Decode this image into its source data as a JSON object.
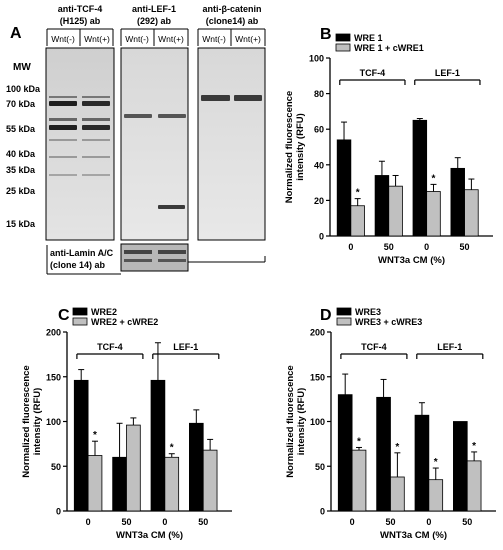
{
  "panels": {
    "A": {
      "label": "A",
      "mw_title": "MW",
      "mw_markers": [
        "100 kDa",
        "70 kDa",
        "55 kDa",
        "40 kDa",
        "35 kDa",
        "25 kDa",
        "15 kDa"
      ],
      "blots": [
        {
          "line1": "anti-TCF-4",
          "line2": "(H125) ab",
          "lanes": [
            "Wnt(-)",
            "Wnt(+)"
          ]
        },
        {
          "line1": "anti-LEF-1",
          "line2": "(292) ab",
          "lanes": [
            "Wnt(-)",
            "Wnt(+)"
          ]
        },
        {
          "line1": "anti-β-catenin",
          "line2": "(clone14) ab",
          "lanes": [
            "Wnt(-)",
            "Wnt(+)"
          ]
        }
      ],
      "lamin_line1": "anti-Lamin A/C",
      "lamin_line2": "(clone 14) ab"
    }
  },
  "chart_data": [
    {
      "panel": "B",
      "type": "bar",
      "legend": [
        "WRE 1",
        "WRE 1 + cWRE1"
      ],
      "ylabel_lines": [
        "Normalized fluorescence",
        "intensity (RFU)"
      ],
      "xlabel": "WNT3a CM (%)",
      "groups": [
        "TCF-4",
        "LEF-1"
      ],
      "categories": [
        "0",
        "50",
        "0",
        "50"
      ],
      "ylim": [
        0,
        100
      ],
      "yticks": [
        0,
        20,
        40,
        60,
        80,
        100
      ],
      "series": [
        {
          "name": "WRE 1",
          "color": "#000000",
          "values": [
            54,
            34,
            65,
            38
          ],
          "errors": [
            10,
            8,
            1,
            6
          ]
        },
        {
          "name": "WRE 1 + cWRE1",
          "color": "#c0c0c0",
          "values": [
            17,
            28,
            25,
            26
          ],
          "errors": [
            4,
            6,
            4,
            6
          ]
        }
      ],
      "significance": [
        {
          "series": 1,
          "category": 0,
          "mark": "*"
        },
        {
          "series": 1,
          "category": 2,
          "mark": "*"
        }
      ]
    },
    {
      "panel": "C",
      "type": "bar",
      "legend": [
        "WRE2",
        "WRE2 + cWRE2"
      ],
      "ylabel_lines": [
        "Normalized fluorescence",
        "intensity (RFU)"
      ],
      "xlabel": "WNT3a CM (%)",
      "groups": [
        "TCF-4",
        "LEF-1"
      ],
      "categories": [
        "0",
        "50",
        "0",
        "50"
      ],
      "ylim": [
        0,
        200
      ],
      "yticks": [
        0,
        50,
        100,
        150,
        200
      ],
      "series": [
        {
          "name": "WRE2",
          "color": "#000000",
          "values": [
            146,
            60,
            146,
            98
          ],
          "errors": [
            12,
            38,
            42,
            15
          ]
        },
        {
          "name": "WRE2 + cWRE2",
          "color": "#c0c0c0",
          "values": [
            62,
            96,
            60,
            68
          ],
          "errors": [
            16,
            8,
            4,
            12
          ]
        }
      ],
      "significance": [
        {
          "series": 1,
          "category": 0,
          "mark": "*"
        },
        {
          "series": 1,
          "category": 2,
          "mark": "*"
        }
      ]
    },
    {
      "panel": "D",
      "type": "bar",
      "legend": [
        "WRE3",
        "WRE3 + cWRE3"
      ],
      "ylabel_lines": [
        "Normalized fluorescence",
        "intensity (RFU)"
      ],
      "xlabel": "WNT3a CM (%)",
      "groups": [
        "TCF-4",
        "LEF-1"
      ],
      "categories": [
        "0",
        "50",
        "0",
        "50"
      ],
      "ylim": [
        0,
        200
      ],
      "yticks": [
        0,
        50,
        100,
        150,
        200
      ],
      "series": [
        {
          "name": "WRE3",
          "color": "#000000",
          "values": [
            130,
            127,
            107,
            100
          ],
          "errors": [
            23,
            20,
            14,
            0
          ]
        },
        {
          "name": "WRE3 + cWRE3",
          "color": "#c0c0c0",
          "values": [
            68,
            38,
            35,
            56
          ],
          "errors": [
            3,
            27,
            13,
            10
          ]
        }
      ],
      "significance": [
        {
          "series": 1,
          "category": 0,
          "mark": "*"
        },
        {
          "series": 1,
          "category": 1,
          "mark": "*"
        },
        {
          "series": 1,
          "category": 2,
          "mark": "*"
        },
        {
          "series": 1,
          "category": 3,
          "mark": "*"
        }
      ]
    }
  ]
}
